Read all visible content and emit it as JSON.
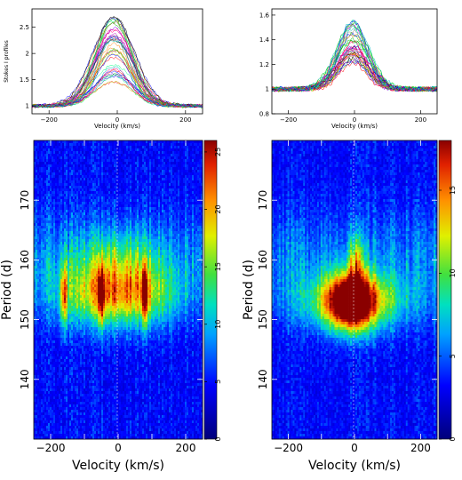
{
  "chart_data": [
    {
      "type": "line",
      "panel": "top-left",
      "xlabel": "Velocity (km/s)",
      "ylabel": "Stokes I profiles",
      "xlim": [
        -250,
        250
      ],
      "ylim": [
        0.85,
        2.85
      ],
      "xticks": [
        -200,
        0,
        200
      ],
      "yticks": [
        1,
        1.5,
        2,
        2.5
      ],
      "ytick_labels": [
        "1",
        "1.5",
        "2",
        "2.5"
      ],
      "profile": {
        "baseline": 1.0,
        "center": -10,
        "width": 55,
        "amp_min": 0.4,
        "amp_max": 1.75,
        "count": 40
      }
    },
    {
      "type": "line",
      "panel": "top-right",
      "xlabel": "Velocity (km/s)",
      "ylabel": "",
      "xlim": [
        -250,
        250
      ],
      "ylim": [
        0.8,
        1.65
      ],
      "xticks": [
        -200,
        0,
        200
      ],
      "yticks": [
        0.8,
        1,
        1.2,
        1.4,
        1.6
      ],
      "ytick_labels": [
        "0.8",
        "1",
        "1.2",
        "1.4",
        "1.6"
      ],
      "profile": {
        "baseline": 1.0,
        "center": -5,
        "width": 45,
        "amp_min": 0.2,
        "amp_max": 0.55,
        "count": 40
      }
    },
    {
      "type": "heatmap",
      "panel": "bottom-left",
      "xlabel": "Velocity (km/s)",
      "ylabel": "Period (d)",
      "xlim": [
        -250,
        250
      ],
      "ylim": [
        130,
        180
      ],
      "xticks": [
        -200,
        -100,
        0,
        100,
        200
      ],
      "xtick_labels": [
        "−200",
        "",
        "0",
        "",
        "200"
      ],
      "yticks": [
        140,
        150,
        160,
        170
      ],
      "ytick_labels": [
        "140",
        "150",
        "160",
        "170"
      ],
      "colorbar": {
        "min": 0,
        "max": 26,
        "ticks": [
          0,
          5,
          10,
          15,
          20,
          25
        ],
        "tick_labels": [
          "0",
          "5",
          "10",
          "15",
          "20",
          "25"
        ]
      },
      "peak_period": 154,
      "peak_velocity_range": [
        -180,
        110
      ],
      "peak_max": 25
    },
    {
      "type": "heatmap",
      "panel": "bottom-right",
      "xlabel": "Velocity (km/s)",
      "ylabel": "Period (d)",
      "xlim": [
        -250,
        250
      ],
      "ylim": [
        130,
        180
      ],
      "xticks": [
        -200,
        -100,
        0,
        100,
        200
      ],
      "xtick_labels": [
        "−200",
        "",
        "0",
        "",
        "200"
      ],
      "yticks": [
        140,
        150,
        160,
        170
      ],
      "ytick_labels": [
        "140",
        "150",
        "160",
        "170"
      ],
      "colorbar": {
        "min": 0,
        "max": 18,
        "ticks": [
          0,
          5,
          10,
          15
        ],
        "tick_labels": [
          "0",
          "5",
          "10",
          "15"
        ]
      },
      "peak_period": 153,
      "peak_velocity_range": [
        -60,
        40
      ],
      "peak_max": 18
    }
  ]
}
